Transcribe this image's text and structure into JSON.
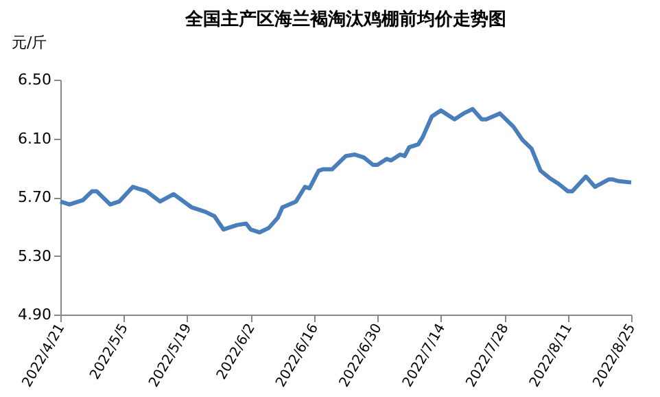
{
  "chart_data": {
    "type": "line",
    "title": "全国主产区海兰褐淘汰鸡棚前均价走势图",
    "ylabel": "元/斤",
    "x": [
      "2022-04-21",
      "2022-04-23",
      "2022-04-26",
      "2022-04-28",
      "2022-04-29",
      "2022-05-02",
      "2022-05-04",
      "2022-05-07",
      "2022-05-10",
      "2022-05-13",
      "2022-05-16",
      "2022-05-20",
      "2022-05-23",
      "2022-05-25",
      "2022-05-27",
      "2022-05-30",
      "2022-06-01",
      "2022-06-02",
      "2022-06-04",
      "2022-06-06",
      "2022-06-08",
      "2022-06-09",
      "2022-06-12",
      "2022-06-14",
      "2022-06-15",
      "2022-06-17",
      "2022-06-18",
      "2022-06-20",
      "2022-06-23",
      "2022-06-25",
      "2022-06-27",
      "2022-06-29",
      "2022-06-30",
      "2022-07-02",
      "2022-07-03",
      "2022-07-05",
      "2022-07-06",
      "2022-07-07",
      "2022-07-09",
      "2022-07-10",
      "2022-07-12",
      "2022-07-14",
      "2022-07-17",
      "2022-07-19",
      "2022-07-21",
      "2022-07-23",
      "2022-07-24",
      "2022-07-27",
      "2022-07-30",
      "2022-08-01",
      "2022-08-03",
      "2022-08-05",
      "2022-08-07",
      "2022-08-09",
      "2022-08-11",
      "2022-08-12",
      "2022-08-15",
      "2022-08-17",
      "2022-08-20",
      "2022-08-21",
      "2022-08-22",
      "2022-08-25"
    ],
    "series": [
      {
        "color": "#4a7ebb",
        "values": [
          5.67,
          5.65,
          5.68,
          5.74,
          5.74,
          5.65,
          5.67,
          5.77,
          5.74,
          5.67,
          5.72,
          5.63,
          5.6,
          5.57,
          5.48,
          5.51,
          5.52,
          5.48,
          5.46,
          5.49,
          5.56,
          5.63,
          5.67,
          5.77,
          5.76,
          5.88,
          5.89,
          5.89,
          5.98,
          5.99,
          5.97,
          5.92,
          5.92,
          5.96,
          5.95,
          5.99,
          5.98,
          6.04,
          6.06,
          6.11,
          6.25,
          6.29,
          6.23,
          6.27,
          6.3,
          6.23,
          6.23,
          6.27,
          6.18,
          6.09,
          6.03,
          5.88,
          5.83,
          5.79,
          5.74,
          5.74,
          5.84,
          5.77,
          5.82,
          5.82,
          5.81,
          5.8
        ]
      }
    ],
    "xlim": [
      "2022-04-21",
      "2022-08-25"
    ],
    "xticks": [
      {
        "value": "2022-04-21",
        "label": "2022/4/21"
      },
      {
        "value": "2022-05-05",
        "label": "2022/5/5"
      },
      {
        "value": "2022-05-19",
        "label": "2022/5/19"
      },
      {
        "value": "2022-06-02",
        "label": "2022/6/2"
      },
      {
        "value": "2022-06-16",
        "label": "2022/6/16"
      },
      {
        "value": "2022-06-30",
        "label": "2022/6/30"
      },
      {
        "value": "2022-07-14",
        "label": "2022/7/14"
      },
      {
        "value": "2022-07-28",
        "label": "2022/7/28"
      },
      {
        "value": "2022-08-11",
        "label": "2022/8/11"
      },
      {
        "value": "2022-08-25",
        "label": "2022/8/25"
      }
    ],
    "ylim": [
      4.9,
      6.5
    ],
    "yticks": [
      {
        "value": 4.9,
        "label": "4.90"
      },
      {
        "value": 5.3,
        "label": "5.30"
      },
      {
        "value": 5.7,
        "label": "5.70"
      },
      {
        "value": 6.1,
        "label": "6.10"
      },
      {
        "value": 6.5,
        "label": "6.50"
      }
    ],
    "grid": false,
    "marker": "none",
    "line_style": "solid"
  }
}
